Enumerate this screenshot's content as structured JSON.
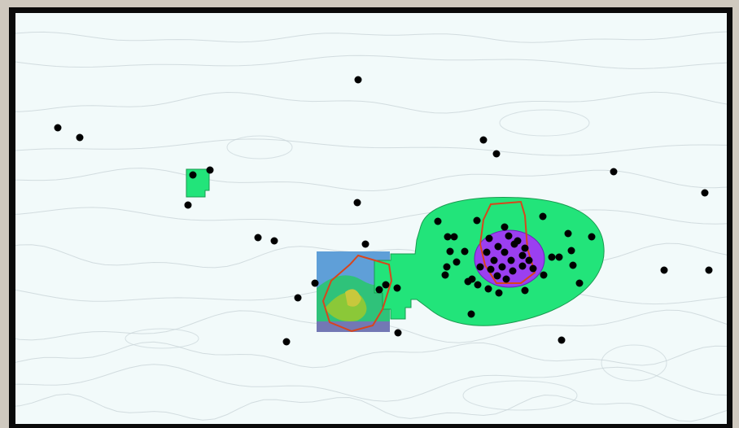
{
  "map": {
    "background_color": "#f2fafa",
    "contour_color": "#c9d4d8",
    "zone_fill_color": "#22e47a",
    "zone_stroke_color": "#1a9a50",
    "core_fill_color": "#9b3ff0",
    "outline_color": "#d8451c",
    "point_color": "#000000",
    "raster_colors": [
      "#5f9fd8",
      "#2fc27a",
      "#8bc838",
      "#c8c83c",
      "#8b5fc8"
    ]
  }
}
